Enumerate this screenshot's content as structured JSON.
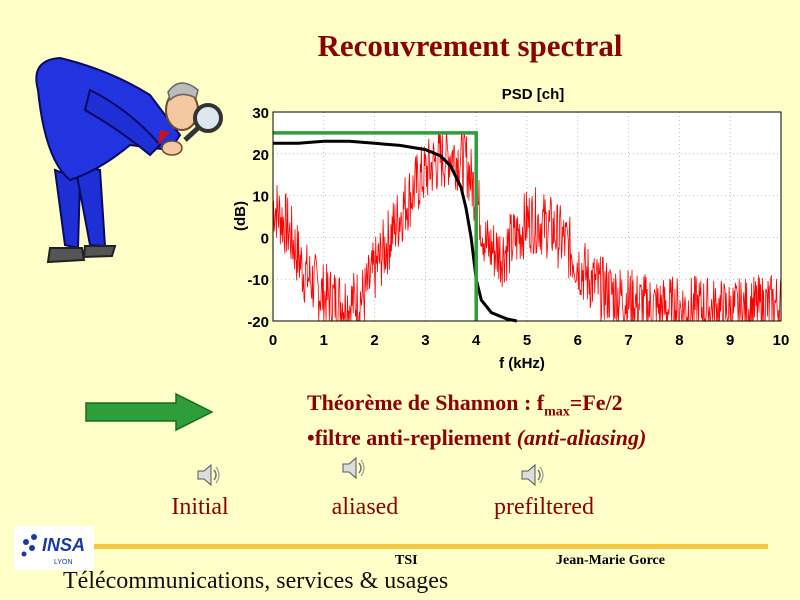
{
  "slide": {
    "title": "Recouvrement spectral",
    "shannon_prefix": "Théorème de Shannon : f",
    "shannon_sub": "max",
    "shannon_suffix": "=Fe/2",
    "filter_prefix": "•filtre anti-repliement ",
    "filter_italic": "(anti-aliasing)",
    "sounds": [
      {
        "label": "Initial",
        "icon": "speaker-icon"
      },
      {
        "label": "aliased",
        "icon": "speaker-icon"
      },
      {
        "label": "prefiltered",
        "icon": "speaker-icon"
      }
    ]
  },
  "footer": {
    "course": "TSI",
    "author": "Jean-Marie Gorce",
    "subtitle": "Télécommunications, services & usages",
    "logo_text": "INSA",
    "logo_subtext": "LYON"
  },
  "colors": {
    "title": "#8b0000",
    "background": "#ffffc8",
    "noise": "#ff0000",
    "filter_response": "#000000",
    "ideal_filter": "#2e9e3a",
    "arrow": "#2e9e3a",
    "footer_line": "#f5c842"
  },
  "chart_data": {
    "type": "line",
    "title": "PSD [ch]",
    "xlabel": "f (kHz)",
    "ylabel": "(dB)",
    "xlim": [
      0,
      10
    ],
    "ylim": [
      -20,
      30
    ],
    "xticks": [
      0,
      1,
      2,
      3,
      4,
      5,
      6,
      7,
      8,
      9,
      10
    ],
    "yticks": [
      -20,
      -10,
      0,
      10,
      20,
      30
    ],
    "grid": true,
    "series": [
      {
        "kind": "noisy-spectrum",
        "color": "#ff0000",
        "x": [
          0,
          0.3,
          0.6,
          1.0,
          1.5,
          1.8,
          2.0,
          2.3,
          2.6,
          2.9,
          3.2,
          3.5,
          3.8,
          4.0,
          4.2,
          4.5,
          4.8,
          5.0,
          5.2,
          5.5,
          5.8,
          6.1,
          6.4,
          6.8,
          7.2,
          7.6,
          8.0,
          8.5,
          9.0,
          9.5,
          10.0
        ],
        "y": [
          8,
          2,
          -8,
          -14,
          -16,
          -14,
          -8,
          0,
          8,
          14,
          18,
          20,
          18,
          10,
          -2,
          -4,
          0,
          4,
          4,
          2,
          -2,
          -8,
          -12,
          -14,
          -16,
          -17,
          -17,
          -17,
          -18,
          -17,
          -16
        ]
      },
      {
        "kind": "filter-response",
        "color": "#000000",
        "x": [
          0,
          0.5,
          1.0,
          1.5,
          2.0,
          2.5,
          3.0,
          3.3,
          3.5,
          3.7,
          3.8,
          3.9,
          4.0,
          4.1,
          4.3,
          4.6,
          4.8
        ],
        "y": [
          22.5,
          22.5,
          23,
          23,
          22.5,
          22,
          21,
          19.5,
          17,
          12,
          7,
          0,
          -10,
          -15,
          -18,
          -19.5,
          -20
        ]
      },
      {
        "kind": "ideal-filter",
        "color": "#2e9e3a",
        "x": [
          0,
          4,
          4
        ],
        "y": [
          25,
          25,
          -20
        ]
      }
    ]
  }
}
